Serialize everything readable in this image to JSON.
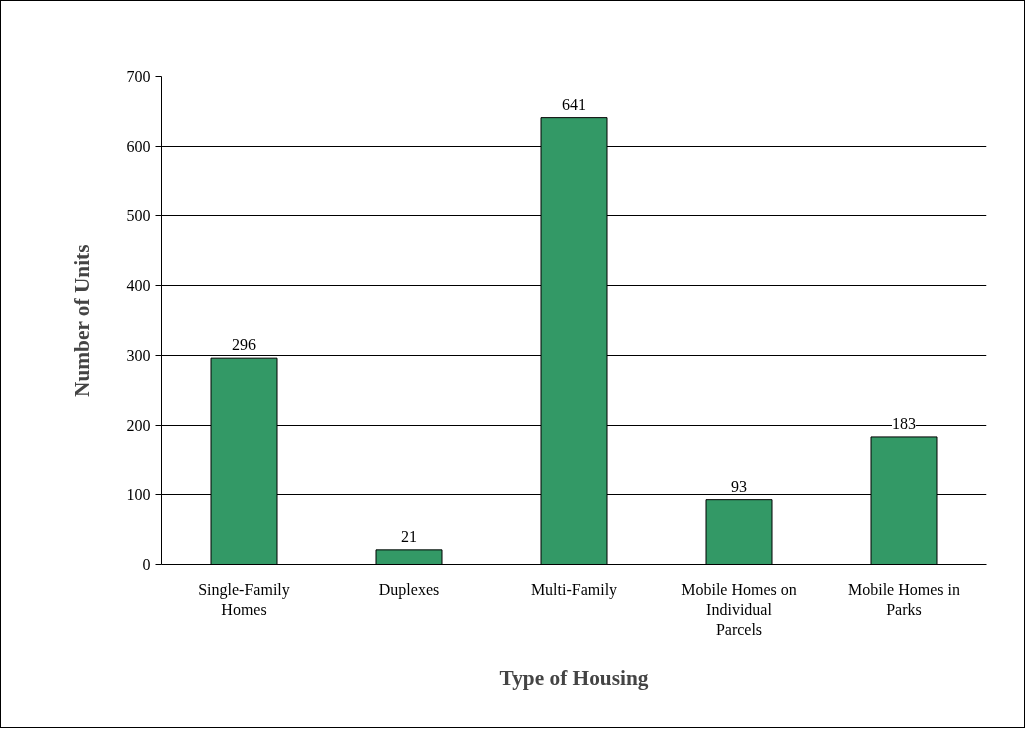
{
  "chart_data": {
    "type": "bar",
    "xlabel": "Type of Housing",
    "ylabel": "Number of Units",
    "categories": [
      "Single-Family Homes",
      "Duplexes",
      "Multi-Family",
      "Mobile Homes on Individual Parcels",
      "Mobile Homes in Parks"
    ],
    "values": [
      296,
      21,
      641,
      93,
      183
    ],
    "color": "#339966",
    "ylim": [
      0,
      700
    ],
    "yticks": [
      0,
      100,
      200,
      300,
      400,
      500,
      600,
      700
    ],
    "grid": "y",
    "data_labels": true
  }
}
